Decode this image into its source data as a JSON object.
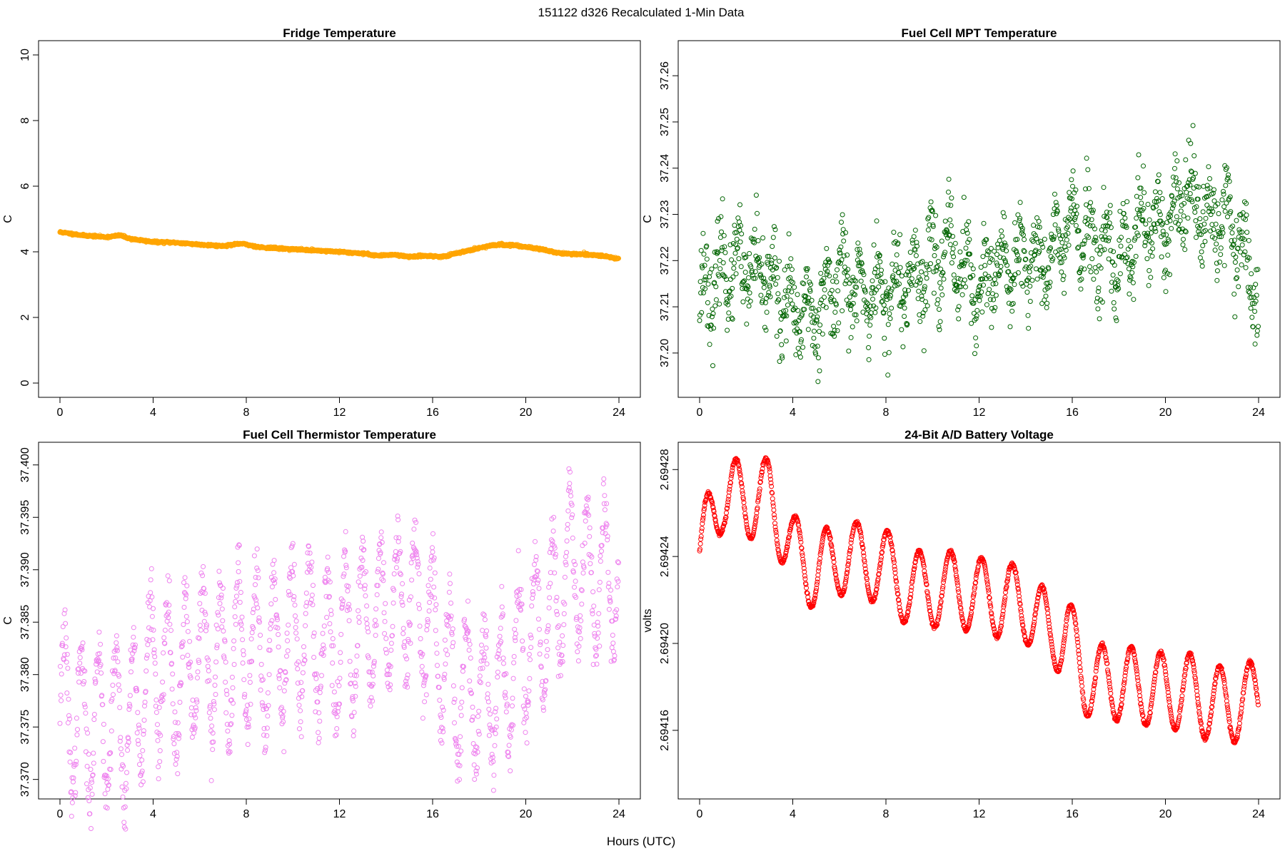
{
  "figure_title": "151122   d326   Recalculated 1-Min Data",
  "x_axis_label": "Hours (UTC)",
  "chart_data": [
    {
      "type": "scatter",
      "title": "Fridge Temperature",
      "ylabel": "C",
      "xlim": [
        0,
        24
      ],
      "ylim": [
        0,
        10
      ],
      "xticks": [
        0,
        4,
        8,
        12,
        16,
        20,
        24
      ],
      "yticks": [
        0,
        2,
        4,
        6,
        8,
        10
      ],
      "ytick_labels": [
        "0",
        "2",
        "4",
        "6",
        "8",
        "10"
      ],
      "color": "#FFA500",
      "marker": "open-circle",
      "n_points": 1440,
      "trend_x": [
        0,
        1,
        2,
        2.6,
        3,
        4,
        5,
        6,
        7,
        7.8,
        8.5,
        9,
        10,
        11,
        12,
        13,
        13.7,
        14.3,
        15,
        15.7,
        16.5,
        17,
        18,
        18.8,
        19.5,
        20.5,
        21.5,
        22.5,
        23.3,
        24
      ],
      "trend_y": [
        4.6,
        4.5,
        4.45,
        4.5,
        4.4,
        4.3,
        4.28,
        4.22,
        4.18,
        4.25,
        4.15,
        4.12,
        4.08,
        4.04,
        4.0,
        3.95,
        3.88,
        3.92,
        3.85,
        3.88,
        3.85,
        3.95,
        4.12,
        4.22,
        4.2,
        4.1,
        3.95,
        3.92,
        3.88,
        3.78
      ],
      "noise_sd": 0.015,
      "seed": 11
    },
    {
      "type": "scatter",
      "title": "Fuel Cell MPT Temperature",
      "ylabel": "C",
      "xlim": [
        0,
        24
      ],
      "ylim": [
        37.1935,
        37.2645
      ],
      "xticks": [
        0,
        4,
        8,
        12,
        16,
        20,
        24
      ],
      "yticks": [
        37.2,
        37.21,
        37.22,
        37.23,
        37.24,
        37.25,
        37.26
      ],
      "ytick_labels": [
        "37.20",
        "37.21",
        "37.22",
        "37.23",
        "37.24",
        "37.25",
        "37.26"
      ],
      "color": "#006400",
      "marker": "open-circle",
      "n_points": 1440,
      "trend_x": [
        0,
        1,
        2,
        3,
        4,
        5,
        6,
        7,
        8,
        9,
        10,
        11,
        12,
        13,
        14,
        15,
        16,
        17,
        18,
        19,
        20,
        21,
        22,
        23,
        24
      ],
      "trend_y": [
        37.212,
        37.218,
        37.218,
        37.216,
        37.208,
        37.209,
        37.217,
        37.213,
        37.213,
        37.215,
        37.221,
        37.221,
        37.213,
        37.219,
        37.219,
        37.221,
        37.228,
        37.222,
        37.218,
        37.228,
        37.227,
        37.234,
        37.23,
        37.228,
        37.21
      ],
      "wave_amp": 0.006,
      "wave_period": 0.75,
      "noise_sd": 0.0045,
      "seed": 23
    },
    {
      "type": "scatter",
      "title": "Fuel Cell Thermistor Temperature",
      "ylabel": "C",
      "xlim": [
        0,
        24
      ],
      "ylim": [
        37.3695,
        37.4008
      ],
      "xticks": [
        0,
        4,
        8,
        12,
        16,
        20,
        24
      ],
      "yticks": [
        37.37,
        37.375,
        37.38,
        37.385,
        37.39,
        37.395,
        37.4
      ],
      "ytick_labels": [
        "37.370",
        "37.375",
        "37.380",
        "37.385",
        "37.390",
        "37.395",
        "37.400"
      ],
      "color": "#EE82EE",
      "marker": "open-circle",
      "n_points": 1440,
      "trend_x": [
        0,
        1,
        2,
        3,
        4,
        5,
        6,
        7,
        8,
        9,
        10,
        11,
        12,
        13,
        14,
        15,
        16,
        17,
        18,
        19,
        20,
        21,
        22,
        23,
        24
      ],
      "trend_y": [
        37.377,
        37.375,
        37.376,
        37.375,
        37.381,
        37.379,
        37.382,
        37.381,
        37.383,
        37.382,
        37.384,
        37.383,
        37.383,
        37.385,
        37.386,
        37.388,
        37.384,
        37.379,
        37.378,
        37.378,
        37.383,
        37.385,
        37.391,
        37.389,
        37.389
      ],
      "wave_amp": 0.007,
      "wave_period": 0.75,
      "noise_sd": 0.0015,
      "seed": 37
    },
    {
      "type": "line",
      "title": "24-Bit A/D Battery Voltage",
      "ylabel": "volts",
      "xlim": [
        0,
        24
      ],
      "ylim": [
        2.694135,
        2.694286
      ],
      "xticks": [
        0,
        4,
        8,
        12,
        16,
        20,
        24
      ],
      "yticks": [
        2.69416,
        2.6942,
        2.69424,
        2.69428
      ],
      "ytick_labels": [
        "2.69416",
        "2.69420",
        "2.69424",
        "2.69428"
      ],
      "color": "#FF0000",
      "marker": "open-circle",
      "n_points": 1440,
      "trend_x": [
        0,
        1,
        2,
        3,
        4,
        5,
        6,
        7,
        8,
        9,
        10,
        11,
        12,
        13,
        14,
        15,
        15.8,
        16.5,
        17,
        18,
        19,
        20,
        21,
        22,
        23,
        24
      ],
      "trend_y": [
        2.694242,
        2.69427,
        2.694265,
        2.694268,
        2.694242,
        2.694232,
        2.69424,
        2.694238,
        2.694235,
        2.694225,
        2.694225,
        2.694225,
        2.694222,
        2.69422,
        2.694218,
        2.694205,
        2.694205,
        2.694185,
        2.694182,
        2.694182,
        2.69418,
        2.694178,
        2.694178,
        2.694172,
        2.694172,
        2.694175
      ],
      "wave_amp": 1.75e-05,
      "wave_period": 1.3,
      "noise_sd": 4e-07,
      "seed": 53
    }
  ]
}
